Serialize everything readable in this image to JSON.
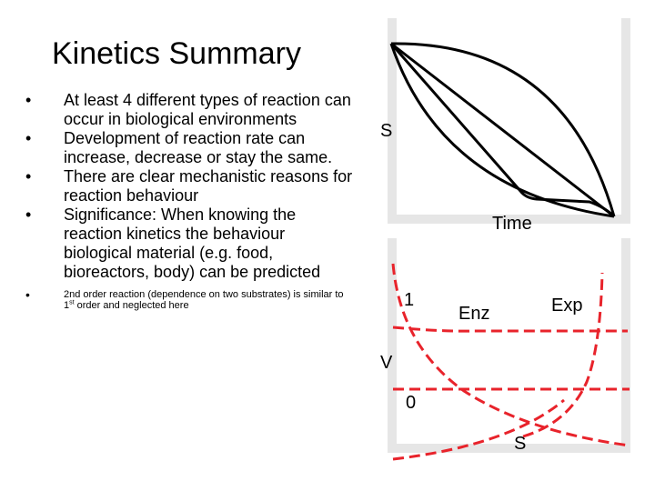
{
  "title": "Kinetics Summary",
  "bullets": [
    "At least 4 different types of reaction can occur in biological environments",
    "Development of reaction rate can increase, decrease or stay the same.",
    "There are clear mechanistic reasons for reaction behaviour",
    "Significance: When knowing the reaction kinetics the behaviour biological material (e.g. food, bioreactors, body) can be predicted"
  ],
  "footnote": {
    "before": "2nd order reaction (dependence on two substrates) is similar to 1",
    "superscript": "st",
    "after": " order and neglected here"
  },
  "bullet_marker": "•",
  "top_plot": {
    "y_label": "S",
    "x_label": "Time",
    "curve_color": "#000000",
    "background": "#e6e6e6"
  },
  "bottom_plot": {
    "y_label": "V",
    "x_label": "S",
    "curve_labels": {
      "first_order": "1",
      "zero_order": "0",
      "enzyme": "Enz",
      "exponential": "Exp"
    },
    "curve_color": "#e8232b",
    "background": "#e6e6e6"
  }
}
